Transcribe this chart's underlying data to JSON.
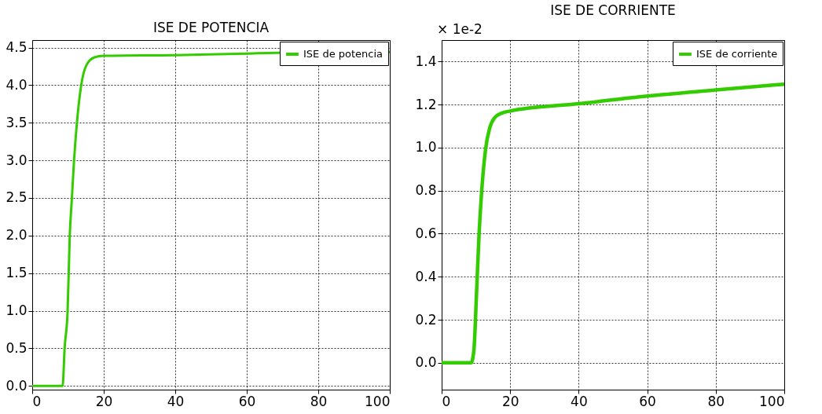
{
  "chart_data": [
    {
      "type": "line",
      "title": "ISE DE POTENCIA",
      "x": [
        0,
        8.5,
        9.06,
        9.9,
        10.5,
        11.1,
        11.7,
        12.5,
        13.7,
        15.2,
        17.4,
        20,
        40,
        60,
        68,
        100
      ],
      "series": [
        {
          "name": "ISE de potencia",
          "color": "#33cc00",
          "values": [
            0,
            0,
            0.5,
            1.0,
            2.0,
            2.5,
            3.0,
            3.5,
            4.0,
            4.27,
            4.37,
            4.39,
            4.4,
            4.42,
            4.43,
            4.44
          ]
        }
      ],
      "xlim": [
        0,
        100
      ],
      "xticks": [
        0,
        20,
        40,
        60,
        80,
        100
      ],
      "ylim": [
        -0.05,
        4.6
      ],
      "yticks": [
        {
          "value": 0,
          "label": "0.0"
        },
        0.5,
        {
          "value": 1,
          "label": "1.0"
        },
        1.5,
        {
          "value": 2,
          "label": "2.0"
        },
        2.5,
        {
          "value": 3,
          "label": "3.0"
        },
        3.5,
        {
          "value": 4,
          "label": "4.0"
        },
        4.5
      ],
      "grid": true,
      "legend": "top right"
    },
    {
      "type": "line",
      "title": "ISE DE CORRIENTE",
      "x": [
        0,
        8.6,
        9.4,
        10.2,
        10.9,
        11.7,
        12.8,
        14.0,
        15.5,
        17.5,
        20,
        40,
        60,
        80,
        100
      ],
      "series": [
        {
          "name": "ISE de corriente",
          "color": "#33cc00",
          "values": [
            0,
            0,
            0.056,
            0.33,
            0.59,
            0.8,
            0.99,
            1.09,
            1.14,
            1.16,
            1.17,
            1.204,
            1.24,
            1.268,
            1.295
          ]
        }
      ],
      "xlim": [
        0,
        100
      ],
      "xticks": [
        0,
        20,
        40,
        60,
        80,
        100
      ],
      "ylim": [
        -0.125,
        1.5
      ],
      "yticks": [
        {
          "value": 0,
          "label": "0.0"
        },
        0.2,
        0.4,
        0.6,
        0.8,
        {
          "value": 1,
          "label": "1.0"
        },
        1.2,
        1.4
      ],
      "grid": true,
      "legend": "top right",
      "annotations": [
        "× 1e-2"
      ]
    }
  ]
}
